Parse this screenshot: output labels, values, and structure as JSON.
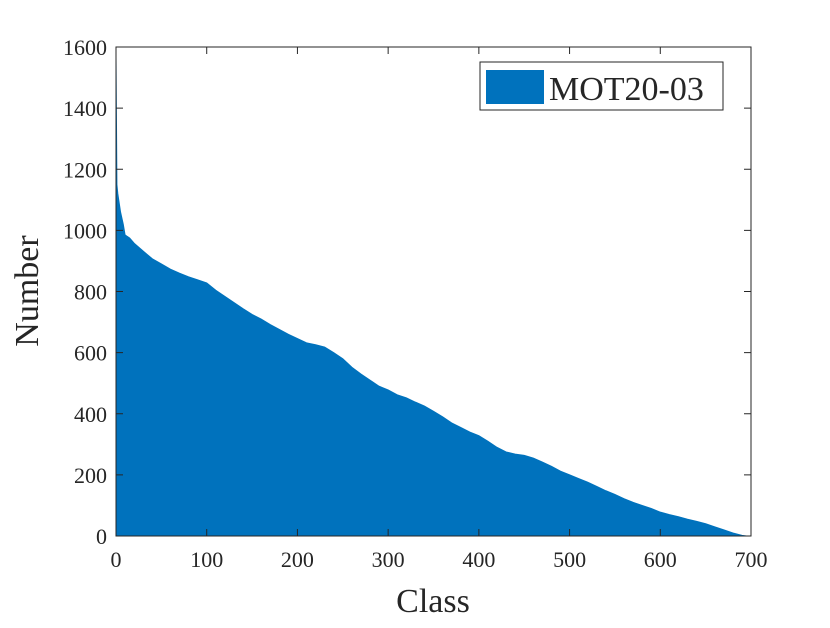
{
  "chart_data": {
    "type": "area",
    "title": "",
    "xlabel": "Class",
    "ylabel": "Number",
    "xlim": [
      0,
      700
    ],
    "ylim": [
      0,
      1600
    ],
    "xticks": [
      0,
      100,
      200,
      300,
      400,
      500,
      600,
      700
    ],
    "yticks": [
      0,
      200,
      400,
      600,
      800,
      1000,
      1200,
      1400,
      1600
    ],
    "grid": false,
    "legend_position": "top-right",
    "series": [
      {
        "name": "MOT20-03",
        "color": "#0072BD",
        "x": [
          0,
          1,
          2,
          3,
          5,
          8,
          10,
          15,
          20,
          30,
          40,
          50,
          60,
          70,
          80,
          90,
          100,
          110,
          120,
          130,
          140,
          150,
          160,
          170,
          180,
          190,
          200,
          210,
          220,
          230,
          240,
          250,
          260,
          270,
          280,
          290,
          300,
          310,
          320,
          330,
          340,
          350,
          360,
          370,
          380,
          390,
          400,
          410,
          420,
          430,
          440,
          450,
          460,
          470,
          480,
          490,
          500,
          510,
          520,
          530,
          540,
          550,
          560,
          570,
          580,
          590,
          600,
          610,
          620,
          630,
          640,
          650,
          660,
          670,
          680,
          690,
          695
        ],
        "values": [
          1570,
          1150,
          1120,
          1100,
          1060,
          1020,
          985,
          975,
          958,
          932,
          907,
          890,
          873,
          860,
          848,
          838,
          828,
          804,
          784,
          764,
          744,
          725,
          710,
          692,
          676,
          660,
          646,
          632,
          626,
          618,
          600,
          580,
          552,
          530,
          510,
          490,
          478,
          462,
          452,
          438,
          425,
          408,
          390,
          370,
          355,
          340,
          328,
          310,
          290,
          275,
          268,
          264,
          255,
          242,
          228,
          212,
          200,
          188,
          176,
          162,
          148,
          136,
          122,
          110,
          100,
          90,
          78,
          70,
          63,
          55,
          48,
          40,
          30,
          20,
          10,
          2,
          0
        ]
      }
    ],
    "x_axis_title": "Class",
    "y_axis_title": "Number"
  }
}
